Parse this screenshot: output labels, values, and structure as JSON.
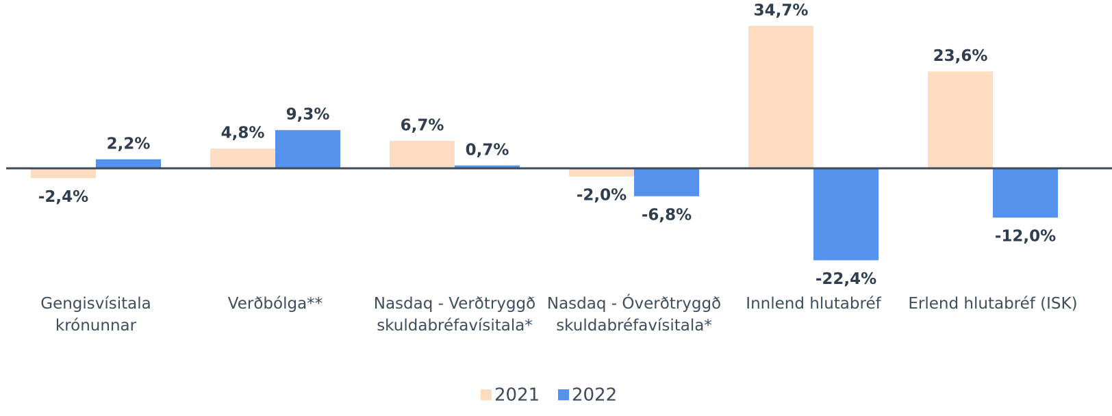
{
  "chart_data": {
    "type": "bar",
    "categories": [
      "Gengisvísitala krónunnar",
      "Verðbólga**",
      "Nasdaq - Verðtryggð skuldabréfavísitala*",
      "Nasdaq - Óverðtryggð skuldabréfavísitala*",
      "Innlend hlutabréf",
      "Erlend hlutabréf (ISK)"
    ],
    "series": [
      {
        "name": "2021",
        "color": "#fddcbf",
        "values": [
          -2.4,
          4.8,
          6.7,
          -2.0,
          34.7,
          23.6
        ],
        "value_labels": [
          "-2,4%",
          "4,8%",
          "6,7%",
          "-2,0%",
          "34,7%",
          "23,6%"
        ]
      },
      {
        "name": "2022",
        "color": "#5592ee",
        "values": [
          2.2,
          9.3,
          0.7,
          -6.8,
          -22.4,
          -12.0
        ],
        "value_labels": [
          "2,2%",
          "9,3%",
          "0,7%",
          "-6,8%",
          "-22,4%",
          "-12,0%"
        ]
      }
    ],
    "ylim": [
      -40,
      40
    ],
    "legend": "bottom"
  }
}
